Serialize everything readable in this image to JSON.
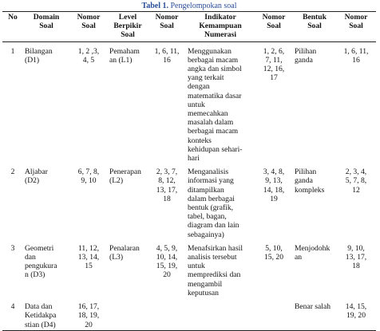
{
  "title": {
    "label": "Tabel 1.",
    "text": "Pengelompokan soal"
  },
  "table": {
    "header": [
      "No",
      "Domain\nSoal",
      "Nomor\nSoal",
      "Level\nBerpikir\nSoal",
      "Nomor\nSoal",
      "Indikator\nKemampuan\nNumerasi",
      "Nomor\nSoal",
      "Bentuk\nSoal",
      "Nomor\nSoal"
    ],
    "rows": [
      [
        "1",
        "Bilangan\n(D1)",
        "1, 2 ,3,\n4, 5",
        "Pemaham\nan (L1)",
        "1, 6, 11,\n16",
        "Menggunakan\nberbagai macam\nangka dan simbol\nyang terkait\ndengan\nmatematika dasar\nuntuk\nmemecahkan\nmasalah dalam\nberbagai macam\nkonteks\nkehidupan sehari-\nhari",
        "1, 2, 6,\n7, 11,\n12, 16,\n17",
        "Pilihan\nganda",
        "1, 6, 11,\n16"
      ],
      [
        "2",
        "Aljabar\n(D2)",
        "6, 7, 8,\n9, 10",
        "Penerapan\n(L2)",
        "2, 3, 7,\n8, 12,\n13, 17,\n18",
        "Menganalisis\ninformasi yang\nditampilkan\ndalam berbagai\nbentuk (grafik,\ntabel, bagan,\ndiagram dan lain\nsebagainya)",
        "3, 4, 8,\n9, 13,\n14, 18,\n19",
        "Pilihan\nganda\nkompleks",
        "2, 3, 4,\n5, 7, 8,\n12"
      ],
      [
        "3",
        "Geometri\ndan\npengukura\nn (D3)",
        "11, 12,\n13, 14,\n15",
        "Penalaran\n(L3)",
        "4, 5, 9,\n10, 14,\n15, 19,\n20",
        "Menafsirkan hasil\nanalisis tersebut\nuntuk\nmemprediksi dan\nmengambil\nkeputusan",
        "5, 10,\n15, 20",
        "Menjodohk\nan",
        "9, 10,\n13, 17,\n18"
      ],
      [
        "4",
        "Data dan\nKetidakpa\nstian (D4)",
        "16, 17,\n18, 19,\n20",
        null,
        null,
        null,
        null,
        "Benar salah",
        "14, 15,\n19, 20"
      ]
    ]
  }
}
